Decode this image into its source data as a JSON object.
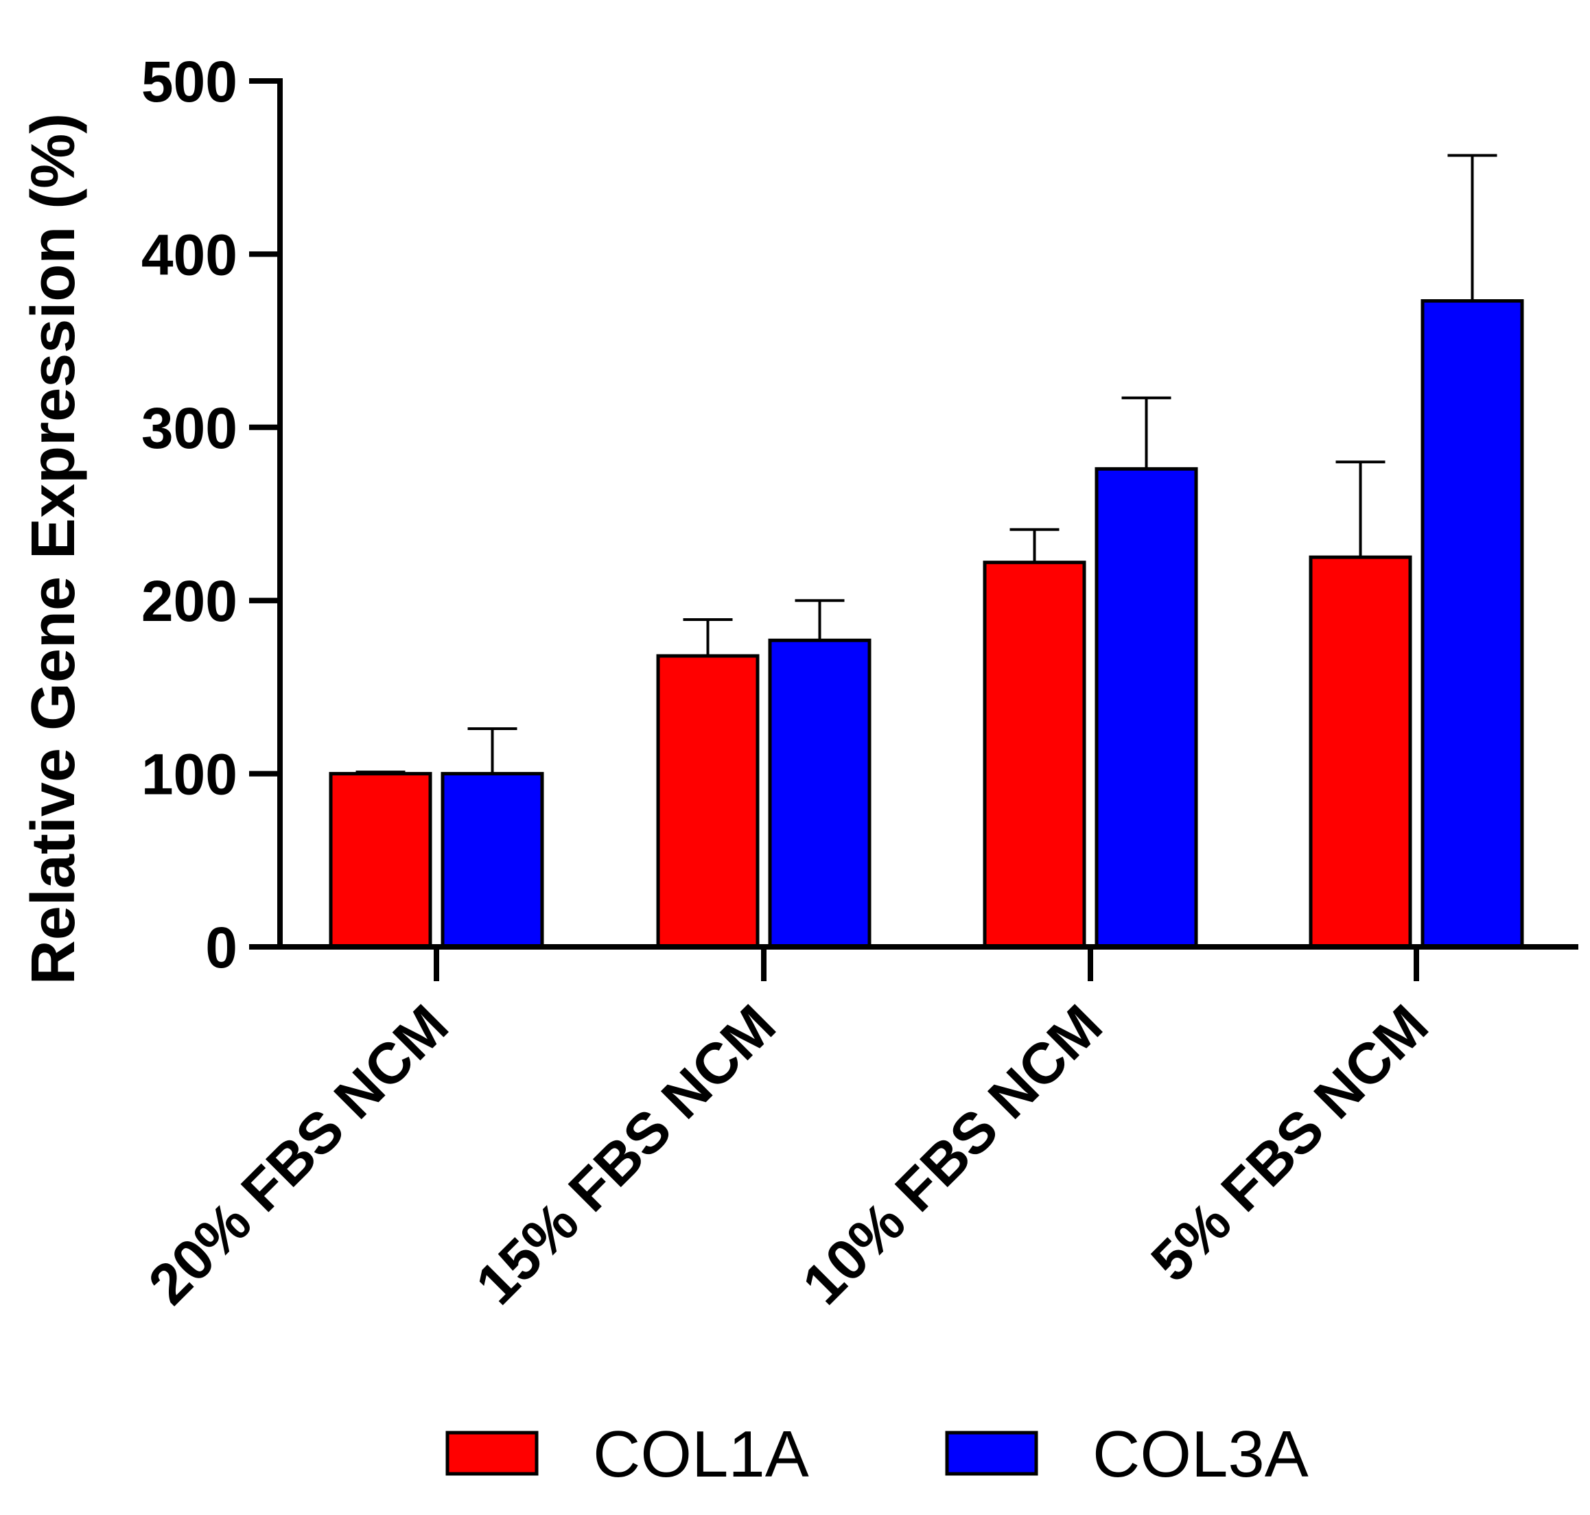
{
  "chart_data": {
    "type": "bar",
    "title": "",
    "xlabel": "",
    "ylabel": "Relative Gene Expression (%)",
    "ylim": [
      0,
      500
    ],
    "yticks": [
      0,
      100,
      200,
      300,
      400,
      500
    ],
    "categories": [
      "20% FBS NCM",
      "15% FBS NCM",
      "10% FBS NCM",
      "5% FBS NCM"
    ],
    "series": [
      {
        "name": "COL1A",
        "color": "#ff0000",
        "values": [
          100,
          168,
          222,
          225
        ],
        "errors": [
          1,
          21,
          19,
          55
        ]
      },
      {
        "name": "COL3A",
        "color": "#0000ff",
        "values": [
          100,
          177,
          276,
          373
        ],
        "errors": [
          26,
          23,
          41,
          84
        ]
      }
    ],
    "legend": {
      "position": "bottom-center"
    }
  }
}
